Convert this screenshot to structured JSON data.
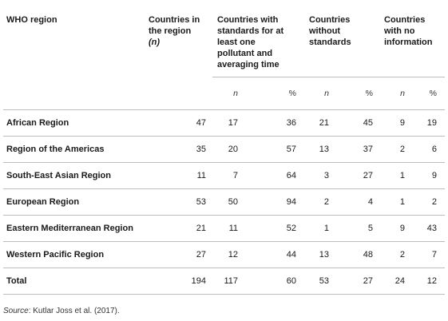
{
  "header": {
    "region": "WHO region",
    "countries_line1": "Countries in",
    "countries_line2": "the region",
    "countries_n": "(n)",
    "standards": "Countries with standards for at least one pollutant and averaging time",
    "without": "Countries without standards",
    "no_info": "Countries with no information"
  },
  "subheader": {
    "n": "n",
    "pct": "%"
  },
  "rows": [
    {
      "region": "African Region",
      "countries": "47",
      "std_n": "17",
      "std_pct": "36",
      "wo_n": "21",
      "wo_pct": "45",
      "ni_n": "9",
      "ni_pct": "19"
    },
    {
      "region": "Region of the Americas",
      "countries": "35",
      "std_n": "20",
      "std_pct": "57",
      "wo_n": "13",
      "wo_pct": "37",
      "ni_n": "2",
      "ni_pct": "6"
    },
    {
      "region": "South-East Asian Region",
      "countries": "11",
      "std_n": "7",
      "std_pct": "64",
      "wo_n": "3",
      "wo_pct": "27",
      "ni_n": "1",
      "ni_pct": "9"
    },
    {
      "region": "European Region",
      "countries": "53",
      "std_n": "50",
      "std_pct": "94",
      "wo_n": "2",
      "wo_pct": "4",
      "ni_n": "1",
      "ni_pct": "2"
    },
    {
      "region": "Eastern Mediterranean Region",
      "countries": "21",
      "std_n": "11",
      "std_pct": "52",
      "wo_n": "1",
      "wo_pct": "5",
      "ni_n": "9",
      "ni_pct": "43"
    },
    {
      "region": "Western Pacific Region",
      "countries": "27",
      "std_n": "12",
      "std_pct": "44",
      "wo_n": "13",
      "wo_pct": "48",
      "ni_n": "2",
      "ni_pct": "7"
    },
    {
      "region": "Total",
      "countries": "194",
      "std_n": "117",
      "std_pct": "60",
      "wo_n": "53",
      "wo_pct": "27",
      "ni_n": "24",
      "ni_pct": "12"
    }
  ],
  "source": {
    "label": "Source",
    "text": ": Kutlar Joss et al. (2017)."
  }
}
